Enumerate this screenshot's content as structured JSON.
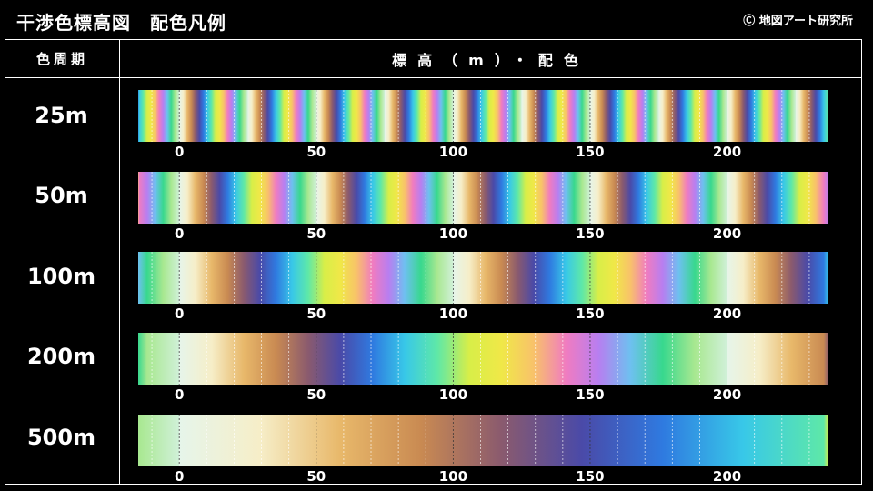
{
  "header": {
    "title": "干渉色標高図　配色凡例",
    "copyright": "Ⓒ 地図アート研究所"
  },
  "table": {
    "col_period": "色周期",
    "col_elevation": "標高（m）・配色"
  },
  "chart_data": {
    "type": "heatmap",
    "title": "干渉色標高図　配色凡例",
    "xlabel": "標高（m）・配色",
    "xlim": [
      -15,
      237
    ],
    "tick_values": [
      0,
      50,
      100,
      150,
      200
    ],
    "tick_labels": [
      "0",
      "50",
      "100",
      "150",
      "200"
    ],
    "series": [
      {
        "name": "25m",
        "period": 25
      },
      {
        "name": "50m",
        "period": 50
      },
      {
        "name": "100m",
        "period": 100
      },
      {
        "name": "200m",
        "period": 200
      },
      {
        "name": "500m",
        "period": 500
      }
    ],
    "palette": [
      "#e6f5ea",
      "#f6eec8",
      "#e8b86a",
      "#c98a52",
      "#8a5a6e",
      "#4a4aa8",
      "#2f7ae0",
      "#38c8e8",
      "#5ee8a8",
      "#d8ee48",
      "#f0e848",
      "#f8c26a",
      "#f07cc0",
      "#b87ef0",
      "#6ec0f0",
      "#38d88e",
      "#a8e890",
      "#d0f0d8"
    ]
  }
}
